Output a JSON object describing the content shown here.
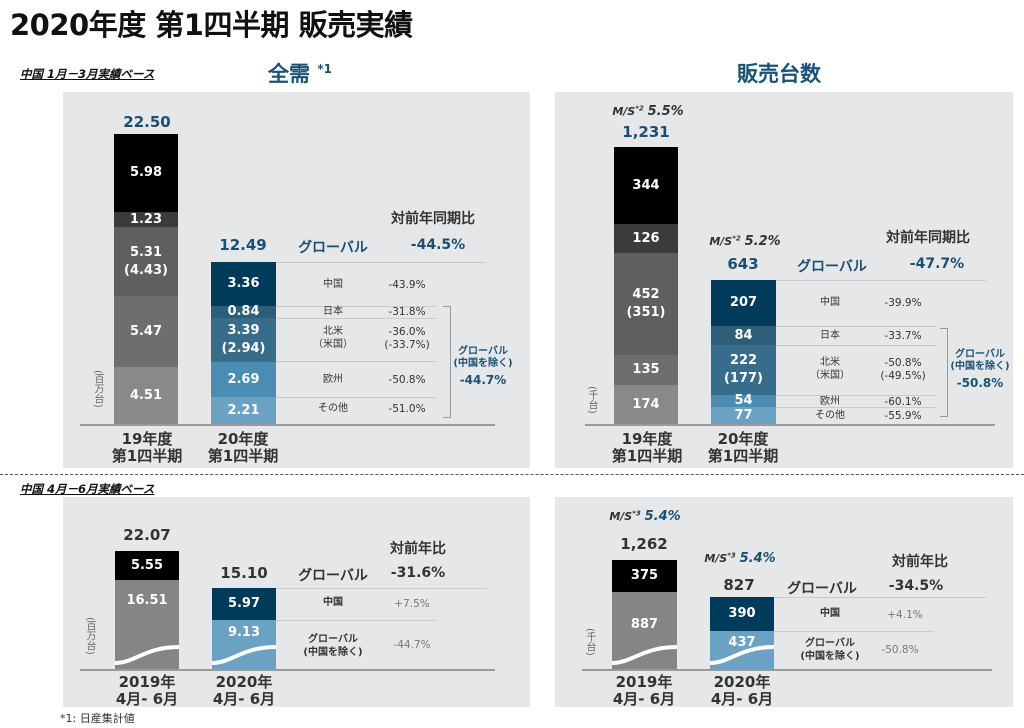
{
  "title": "2020年度 第1四半期 販売実績",
  "section1": "中国 1月－3月実績ベース",
  "section2": "中国 4月－6月実績ベース",
  "headers": {
    "tiv": "全需",
    "tiv_note": "*1",
    "sales": "販売台数"
  },
  "footnote": "*1: 日産集計値",
  "colors": {
    "accent": "#1a5276",
    "panel": "#e6e7e9",
    "china": "#003b5c"
  },
  "chart_data": [
    {
      "type": "stacked-bar",
      "title": "全需 (Q1, 中国 1-3月)",
      "unit": "(百万台)",
      "categories": [
        "19年度\n第1四半期",
        "20年度\n第1四半期"
      ],
      "cat_lines": [
        [
          "19年度",
          "第1四半期"
        ],
        [
          "20年度",
          "第1四半期"
        ]
      ],
      "totals": [
        "22.50",
        "12.49"
      ],
      "bar1": [
        "5.98",
        "1.23",
        "5.31",
        "(4.43)",
        "5.47",
        "4.51"
      ],
      "bar2": [
        "3.36",
        "0.84",
        "3.39",
        "(2.94)",
        "2.69",
        "2.21"
      ],
      "yoy_header": "対前年同期比",
      "global_label": "グローバル",
      "global_yoy": "-44.5%",
      "rows": [
        {
          "region": "中国",
          "yoy": "-43.9%"
        },
        {
          "region": "日本",
          "yoy": "-31.8%"
        },
        {
          "region": "北米",
          "region2": "（米国）",
          "yoy": "-36.0%",
          "yoy2": "(-33.7%)"
        },
        {
          "region": "欧州",
          "yoy": "-50.8%"
        },
        {
          "region": "その他",
          "yoy": "-51.0%"
        }
      ],
      "ex_china_label": "グローバル",
      "ex_china_label2": "(中国を除く)",
      "ex_china_yoy": "-44.7%"
    },
    {
      "type": "stacked-bar",
      "title": "販売台数 (Q1, 中国 1-3月)",
      "unit": "(千台)",
      "cat_lines": [
        [
          "19年度",
          "第1四半期"
        ],
        [
          "20年度",
          "第1四半期"
        ]
      ],
      "ms_label": "M/S",
      "ms_note": "*2",
      "ms": [
        "5.5%",
        "5.2%"
      ],
      "totals": [
        "1,231",
        "643"
      ],
      "bar1": [
        "344",
        "126",
        "452",
        "(351)",
        "135",
        "174"
      ],
      "bar2": [
        "207",
        "84",
        "222",
        "(177)",
        "54",
        "77"
      ],
      "yoy_header": "対前年同期比",
      "global_label": "グローバル",
      "global_yoy": "-47.7%",
      "rows": [
        {
          "region": "中国",
          "yoy": "-39.9%"
        },
        {
          "region": "日本",
          "yoy": "-33.7%"
        },
        {
          "region": "北米",
          "region2": "（米国）",
          "yoy": "-50.8%",
          "yoy2": "(-49.5%)"
        },
        {
          "region": "欧州",
          "yoy": "-60.1%"
        },
        {
          "region": "その他",
          "yoy": "-55.9%"
        }
      ],
      "ex_china_label": "グローバル",
      "ex_china_label2": "(中国を除く)",
      "ex_china_yoy": "-50.8%"
    },
    {
      "type": "stacked-bar",
      "title": "全需 (中国 4-6月)",
      "unit": "(百万台)",
      "cat_lines": [
        [
          "2019年",
          "4月- 6月"
        ],
        [
          "2020年",
          "4月- 6月"
        ]
      ],
      "totals": [
        "22.07",
        "15.10"
      ],
      "bar1": [
        "5.55",
        "16.51"
      ],
      "bar2": [
        "5.97",
        "9.13"
      ],
      "yoy_header": "対前年比",
      "global_label": "グローバル",
      "global_yoy": "-31.6%",
      "rows": [
        {
          "region": "中国",
          "yoy": "+7.5%"
        },
        {
          "region": "グローバル",
          "region2": "(中国を除く)",
          "yoy": "-44.7%"
        }
      ]
    },
    {
      "type": "stacked-bar",
      "title": "販売台数 (中国 4-6月)",
      "unit": "(千台)",
      "cat_lines": [
        [
          "2019年",
          "4月- 6月"
        ],
        [
          "2020年",
          "4月- 6月"
        ]
      ],
      "ms_label": "M/S",
      "ms_note": "*3",
      "ms": [
        "5.4%",
        "5.4%"
      ],
      "totals": [
        "1,262",
        "827"
      ],
      "bar1": [
        "375",
        "887"
      ],
      "bar2": [
        "390",
        "437"
      ],
      "yoy_header": "対前年比",
      "global_label": "グローバル",
      "global_yoy": "-34.5%",
      "rows": [
        {
          "region": "中国",
          "yoy": "+4.1%"
        },
        {
          "region": "グローバル",
          "region2": "(中国を除く)",
          "yoy": "-50.8%"
        }
      ]
    }
  ]
}
